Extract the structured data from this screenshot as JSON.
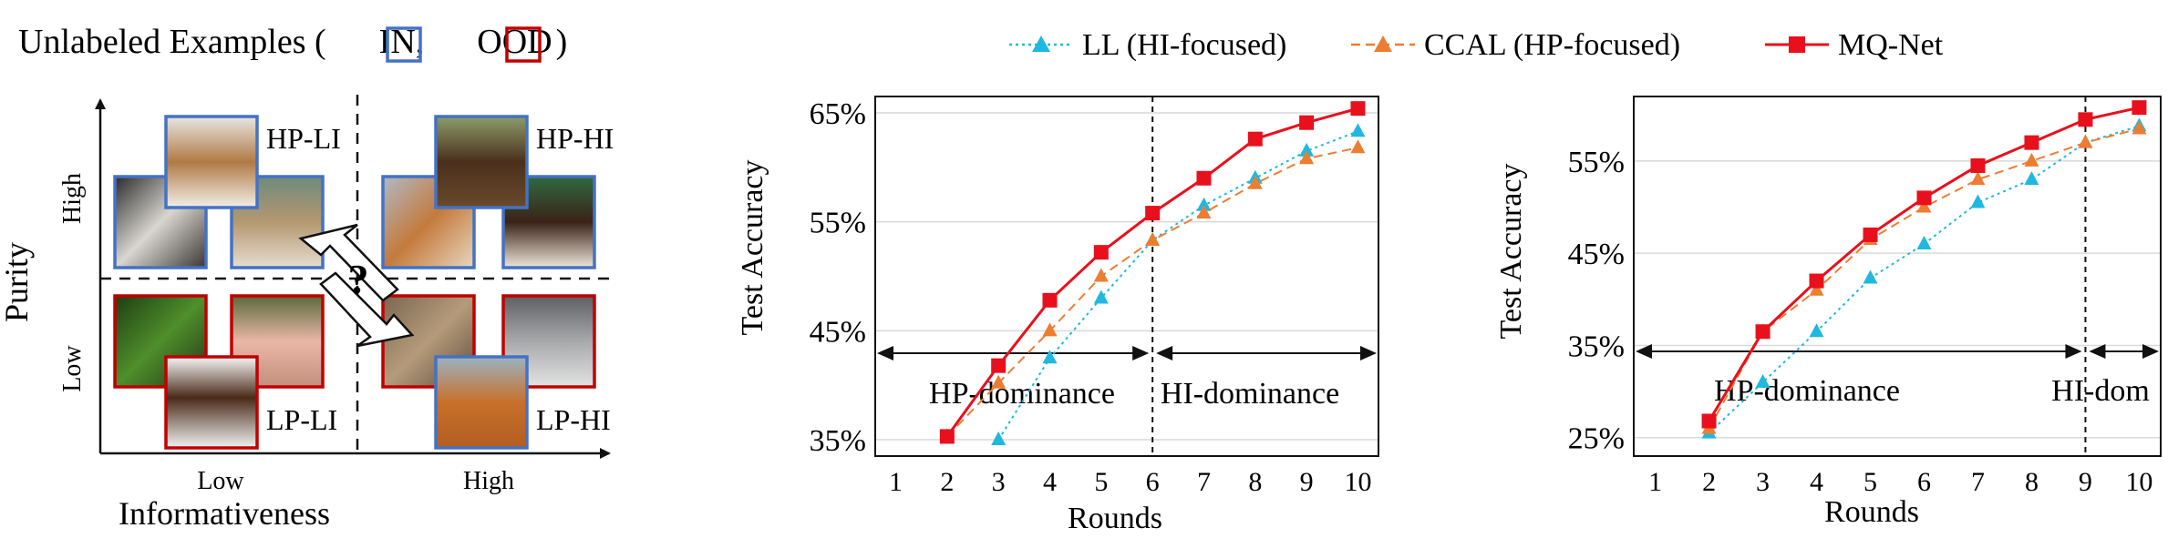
{
  "schematic": {
    "title_prefix": "Unlabeled Examples (",
    "in_label": "IN,",
    "ood_label": "OOD",
    "title_suffix": ")",
    "in_color": "#4472c4",
    "ood_color": "#c00000",
    "y_axis_label": "Purity",
    "x_axis_label": "Informativeness",
    "y_high": "High",
    "y_low": "Low",
    "x_low": "Low",
    "x_high": "High",
    "q_mark": "?",
    "quadrants": {
      "hp_li": "HP-LI",
      "hp_hi": "HP-HI",
      "lp_li": "LP-LI",
      "lp_hi": "LP-HI"
    },
    "images": {
      "hp_li": [
        "beagle-dog",
        "cats",
        "tabby-cat"
      ],
      "hp_hi": [
        "newfoundland-dog",
        "pomeranian-dog",
        "sheltie-dog"
      ],
      "lp_li": [
        "frog",
        "horse",
        "pig"
      ],
      "lp_hi": [
        "lynx",
        "wolf",
        "chow-chow-dog"
      ]
    }
  },
  "legend": [
    {
      "name": "LL (HI-focused)",
      "color": "#1fb8e0",
      "marker": "triangle",
      "dash": "dotted"
    },
    {
      "name": "CCAL (HP-focused)",
      "color": "#ed7d31",
      "marker": "triangle",
      "dash": "dashed"
    },
    {
      "name": "MQ-Net",
      "color": "#e8101c",
      "marker": "square",
      "dash": "solid"
    }
  ],
  "chart_data": [
    {
      "type": "line",
      "xlabel": "Rounds",
      "ylabel": "Test Accuracy",
      "x": [
        1,
        2,
        3,
        4,
        5,
        6,
        7,
        8,
        9,
        10
      ],
      "xlim": [
        0.6,
        10.4
      ],
      "ylim": [
        33.5,
        66.5
      ],
      "yticks": [
        35,
        45,
        55,
        65
      ],
      "ytick_labels": [
        "35%",
        "45%",
        "55%",
        "65%"
      ],
      "grid": "horizontal",
      "split_round": 6,
      "regions": [
        {
          "label": "HP-dominance"
        },
        {
          "label": "HI-dominance"
        }
      ],
      "series": [
        {
          "name": "LL (HI-focused)",
          "x": [
            3,
            4,
            5,
            6,
            7,
            8,
            9,
            10
          ],
          "values": [
            35.0,
            42.5,
            48.0,
            53.3,
            56.5,
            59.0,
            61.5,
            63.3
          ]
        },
        {
          "name": "CCAL (HP-focused)",
          "x": [
            2,
            3,
            4,
            5,
            6,
            7,
            8,
            9,
            10
          ],
          "values": [
            35.3,
            40.2,
            45.0,
            50.0,
            53.3,
            55.8,
            58.5,
            60.8,
            61.8
          ]
        },
        {
          "name": "MQ-Net",
          "x": [
            2,
            3,
            4,
            5,
            6,
            7,
            8,
            9,
            10
          ],
          "values": [
            35.3,
            41.8,
            47.8,
            52.2,
            55.8,
            59.0,
            62.6,
            64.1,
            65.4
          ]
        }
      ]
    },
    {
      "type": "line",
      "xlabel": "Rounds",
      "ylabel": "Test Accuracy",
      "x": [
        1,
        2,
        3,
        4,
        5,
        6,
        7,
        8,
        9,
        10
      ],
      "xlim": [
        0.6,
        10.4
      ],
      "ylim": [
        23.0,
        62.0
      ],
      "yticks": [
        25,
        35,
        45,
        55
      ],
      "ytick_labels": [
        "25%",
        "35%",
        "45%",
        "55%"
      ],
      "grid": "horizontal",
      "split_round": 9,
      "regions": [
        {
          "label": "HP-dominance"
        },
        {
          "label": "HI-dom"
        }
      ],
      "series": [
        {
          "name": "LL (HI-focused)",
          "x": [
            2,
            3,
            4,
            5,
            6,
            7,
            8,
            9,
            10
          ],
          "values": [
            25.5,
            31.0,
            36.5,
            42.3,
            46.0,
            50.5,
            53.0,
            57.0,
            58.8
          ]
        },
        {
          "name": "CCAL (HP-focused)",
          "x": [
            2,
            3,
            4,
            5,
            6,
            7,
            8,
            9,
            10
          ],
          "values": [
            26.0,
            36.5,
            41.0,
            46.5,
            50.0,
            53.0,
            55.0,
            57.0,
            58.5
          ]
        },
        {
          "name": "MQ-Net",
          "x": [
            2,
            3,
            4,
            5,
            6,
            7,
            8,
            9,
            10
          ],
          "values": [
            26.8,
            36.5,
            42.0,
            47.0,
            51.0,
            54.5,
            57.0,
            59.5,
            60.8
          ]
        }
      ]
    }
  ]
}
